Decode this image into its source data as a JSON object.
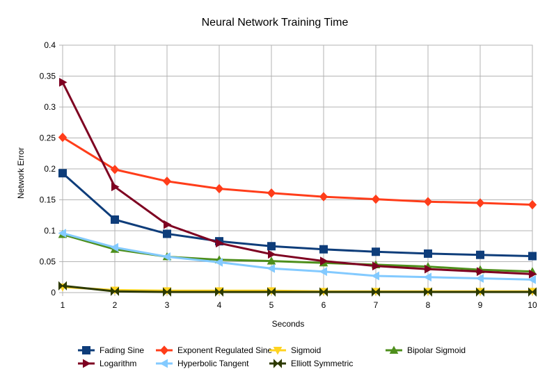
{
  "chart_data": {
    "type": "line",
    "title": "Neural Network Training Time",
    "xlabel": "Seconds",
    "ylabel": "Network Error",
    "x": [
      1,
      2,
      3,
      4,
      5,
      6,
      7,
      8,
      9,
      10
    ],
    "xlim": [
      1,
      10
    ],
    "ylim": [
      0,
      0.4
    ],
    "yticks": [
      0,
      0.05,
      0.1,
      0.15,
      0.2,
      0.25,
      0.3,
      0.35,
      0.4
    ],
    "yticks_labels": [
      "0",
      "0.05",
      "0.1",
      "0.15",
      "0.2",
      "0.25",
      "0.3",
      "0.35",
      "0.4"
    ],
    "xticks_labels": [
      "1",
      "2",
      "3",
      "4",
      "5",
      "6",
      "7",
      "8",
      "9",
      "10"
    ],
    "grid": true,
    "legend_position": "bottom",
    "series": [
      {
        "name": "Fading Sine",
        "color": "#0e3d7a",
        "marker": "square",
        "values": [
          0.193,
          0.118,
          0.095,
          0.083,
          0.075,
          0.07,
          0.066,
          0.063,
          0.061,
          0.059
        ]
      },
      {
        "name": "Exponent Regulated Sine",
        "color": "#ff3d1a",
        "marker": "diamond",
        "values": [
          0.251,
          0.199,
          0.18,
          0.168,
          0.161,
          0.155,
          0.151,
          0.147,
          0.145,
          0.142
        ]
      },
      {
        "name": "Sigmoid",
        "color": "#ffd320",
        "marker": "triangle-down",
        "values": [
          0.009,
          0.004,
          0.003,
          0.003,
          0.003,
          0.002,
          0.002,
          0.002,
          0.002,
          0.002
        ]
      },
      {
        "name": "Bipolar Sigmoid",
        "color": "#4e8f1c",
        "marker": "triangle-up",
        "values": [
          0.094,
          0.07,
          0.058,
          0.053,
          0.051,
          0.048,
          0.045,
          0.042,
          0.037,
          0.034
        ]
      },
      {
        "name": "Logarithm",
        "color": "#7e0021",
        "marker": "triangle-right",
        "values": [
          0.34,
          0.171,
          0.11,
          0.08,
          0.062,
          0.051,
          0.043,
          0.038,
          0.034,
          0.03
        ]
      },
      {
        "name": "Hyperbolic Tangent",
        "color": "#83caff",
        "marker": "triangle-left",
        "values": [
          0.096,
          0.073,
          0.058,
          0.049,
          0.039,
          0.034,
          0.027,
          0.025,
          0.023,
          0.021
        ]
      },
      {
        "name": "Elliott Symmetric",
        "color": "#2d3a00",
        "marker": "bowtie",
        "values": [
          0.011,
          0.002,
          0.001,
          0.001,
          0.001,
          0.001,
          0.001,
          0.001,
          0.001,
          0.001
        ]
      }
    ]
  }
}
